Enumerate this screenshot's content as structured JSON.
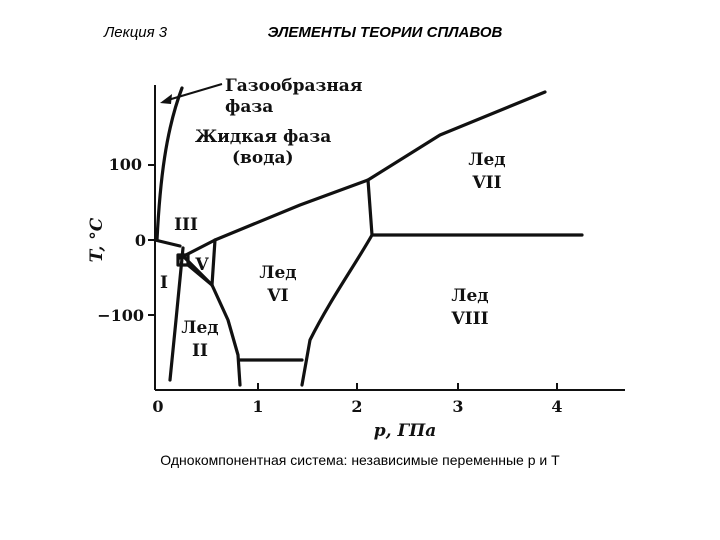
{
  "header": {
    "lecture": "Лекция 3",
    "title": "ЭЛЕМЕНТЫ ТЕОРИИ СПЛАВОВ"
  },
  "diagram": {
    "x_axis": {
      "label": "p, ГПа",
      "ticks": [
        "0",
        "1",
        "2",
        "3",
        "4"
      ]
    },
    "y_axis": {
      "label": "T, °C",
      "ticks": [
        "100",
        "0",
        "−100"
      ]
    },
    "regions": {
      "gas": [
        "Газообразная",
        "фаза"
      ],
      "liquid": [
        "Жидкая фаза",
        "(вода)"
      ],
      "ice_vii": [
        "Лед",
        "VII"
      ],
      "ice_iii": "III",
      "ice_v": "V",
      "ice_i": "I",
      "ice_vi": [
        "Лед",
        "VI"
      ],
      "ice_viii": [
        "Лед",
        "VIII"
      ],
      "ice_ii": [
        "Лед",
        "II"
      ]
    }
  },
  "caption": "Однокомпонентная система: независимые переменные p и T"
}
